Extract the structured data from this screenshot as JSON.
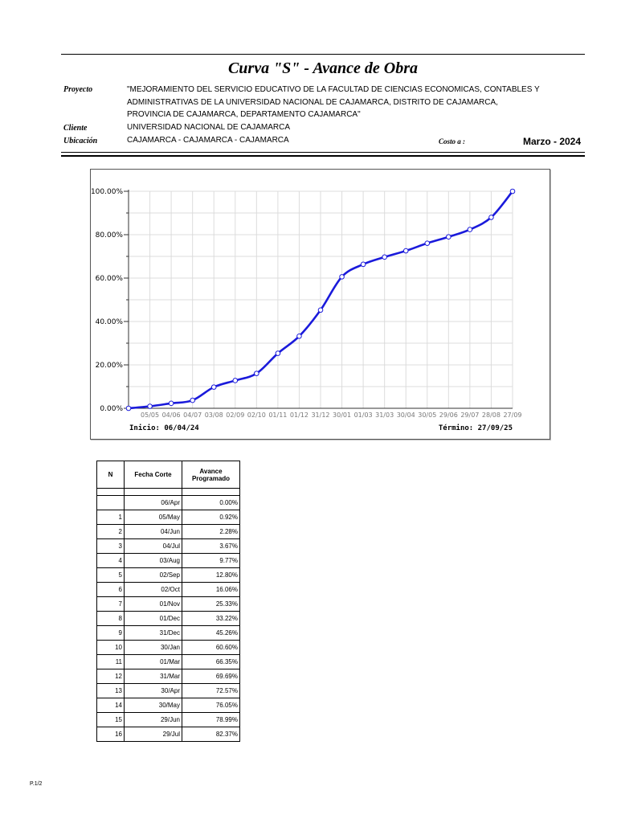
{
  "header": {
    "title": "Curva \"S\" - Avance de Obra",
    "proyecto_label": "Proyecto",
    "proyecto_lines": [
      "\"MEJORAMIENTO DEL SERVICIO EDUCATIVO DE LA FACULTAD DE CIENCIAS ECONOMICAS, CONTABLES Y",
      "ADMINISTRATIVAS DE LA UNIVERSIDAD NACIONAL DE CAJAMARCA, DISTRITO DE CAJAMARCA,",
      "PROVINCIA DE CAJAMARCA, DEPARTAMENTO CAJAMARCA\""
    ],
    "cliente_label": "Cliente",
    "cliente_value": "UNIVERSIDAD NACIONAL DE CAJAMARCA",
    "ubicacion_label": "Ubicación",
    "ubicacion_value": "CAJAMARCA - CAJAMARCA - CAJAMARCA",
    "costo_label": "Costo a :",
    "costo_value": "Marzo - 2024"
  },
  "chart_data": {
    "type": "line",
    "x": [
      "06/04",
      "05/05",
      "04/06",
      "04/07",
      "03/08",
      "02/09",
      "02/10",
      "01/11",
      "01/12",
      "31/12",
      "30/01",
      "01/03",
      "31/03",
      "30/04",
      "30/05",
      "29/06",
      "29/07",
      "28/08",
      "27/09"
    ],
    "x_tick_labels": [
      "05/05",
      "04/06",
      "04/07",
      "03/08",
      "02/09",
      "02/10",
      "01/11",
      "01/12",
      "31/12",
      "30/01",
      "01/03",
      "31/03",
      "30/04",
      "30/05",
      "29/06",
      "29/07",
      "28/08",
      "27/09"
    ],
    "series": [
      {
        "values": [
          0.0,
          0.92,
          2.28,
          3.67,
          9.77,
          12.8,
          16.06,
          25.33,
          33.22,
          45.26,
          60.6,
          66.35,
          69.69,
          72.57,
          76.05,
          78.99,
          82.37,
          88.0,
          100.0
        ]
      }
    ],
    "ylim": [
      0,
      100
    ],
    "y_ticks": [
      "0.00%",
      "20.00%",
      "40.00%",
      "60.00%",
      "80.00%",
      "100.00%"
    ],
    "grid": true,
    "line_color": "#1a1adb",
    "inicio_label": "Inicio: 06/04/24",
    "termino_label": "Término: 27/09/25"
  },
  "table": {
    "headers": [
      "N",
      "Fecha Corte",
      "Avance Programado"
    ],
    "rows": [
      [
        "",
        "06/Apr",
        "0.00%"
      ],
      [
        "1",
        "05/May",
        "0.92%"
      ],
      [
        "2",
        "04/Jun",
        "2.28%"
      ],
      [
        "3",
        "04/Jul",
        "3.67%"
      ],
      [
        "4",
        "03/Aug",
        "9.77%"
      ],
      [
        "5",
        "02/Sep",
        "12.80%"
      ],
      [
        "6",
        "02/Oct",
        "16.06%"
      ],
      [
        "7",
        "01/Nov",
        "25.33%"
      ],
      [
        "8",
        "01/Dec",
        "33.22%"
      ],
      [
        "9",
        "31/Dec",
        "45.26%"
      ],
      [
        "10",
        "30/Jan",
        "60.60%"
      ],
      [
        "11",
        "01/Mar",
        "66.35%"
      ],
      [
        "12",
        "31/Mar",
        "69.69%"
      ],
      [
        "13",
        "30/Apr",
        "72.57%"
      ],
      [
        "14",
        "30/May",
        "76.05%"
      ],
      [
        "15",
        "29/Jun",
        "78.99%"
      ],
      [
        "16",
        "29/Jul",
        "82.37%"
      ]
    ]
  },
  "footer": {
    "page": "P.1/2"
  }
}
